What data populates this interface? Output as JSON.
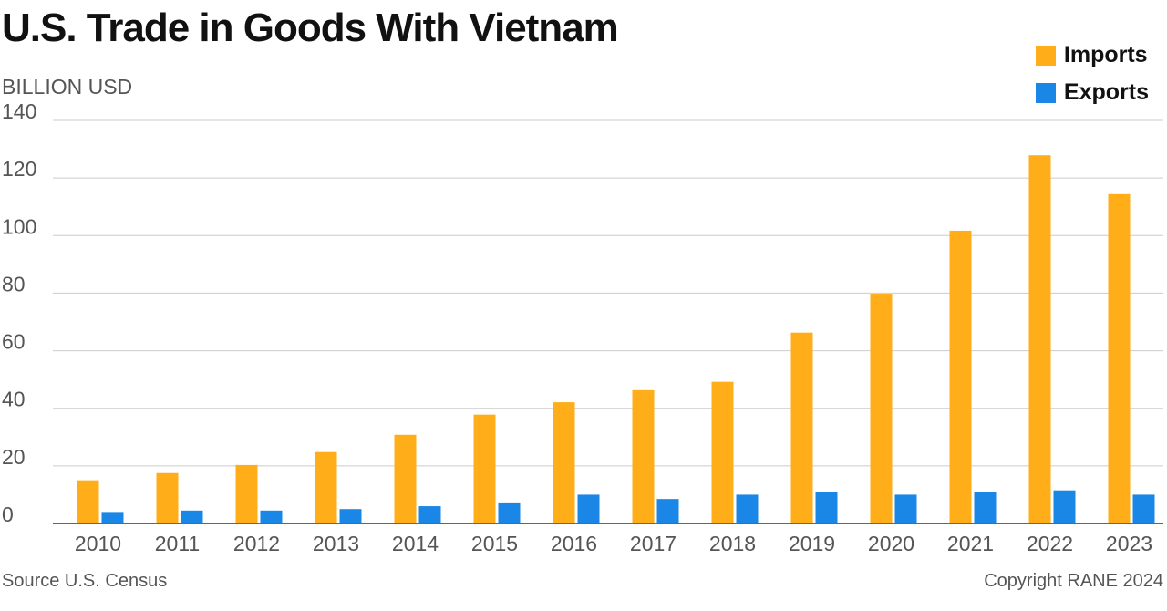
{
  "chart_data": {
    "type": "bar",
    "title": "U.S. Trade in Goods With Vietnam",
    "ylabel": "BILLION USD",
    "xlabel": "",
    "ylim": [
      0,
      140
    ],
    "yticks": [
      0,
      20,
      40,
      60,
      80,
      100,
      120,
      140
    ],
    "grid": true,
    "legend_position": "top-right",
    "categories": [
      "2010",
      "2011",
      "2012",
      "2013",
      "2014",
      "2015",
      "2016",
      "2017",
      "2018",
      "2019",
      "2020",
      "2021",
      "2022",
      "2023"
    ],
    "series": [
      {
        "name": "Imports",
        "color": "#FFAE1A",
        "values": [
          15,
          17.5,
          20.3,
          24.8,
          30.8,
          37.8,
          42.1,
          46.3,
          49.2,
          66.3,
          79.8,
          101.7,
          127.9,
          114.4
        ]
      },
      {
        "name": "Exports",
        "color": "#1A87E6",
        "values": [
          4,
          4.5,
          4.5,
          5,
          6,
          7,
          10,
          8.5,
          10,
          11,
          10,
          11,
          11.5,
          10
        ]
      }
    ],
    "source": "Source U.S. Census",
    "copyright": "Copyright RANE 2024"
  }
}
